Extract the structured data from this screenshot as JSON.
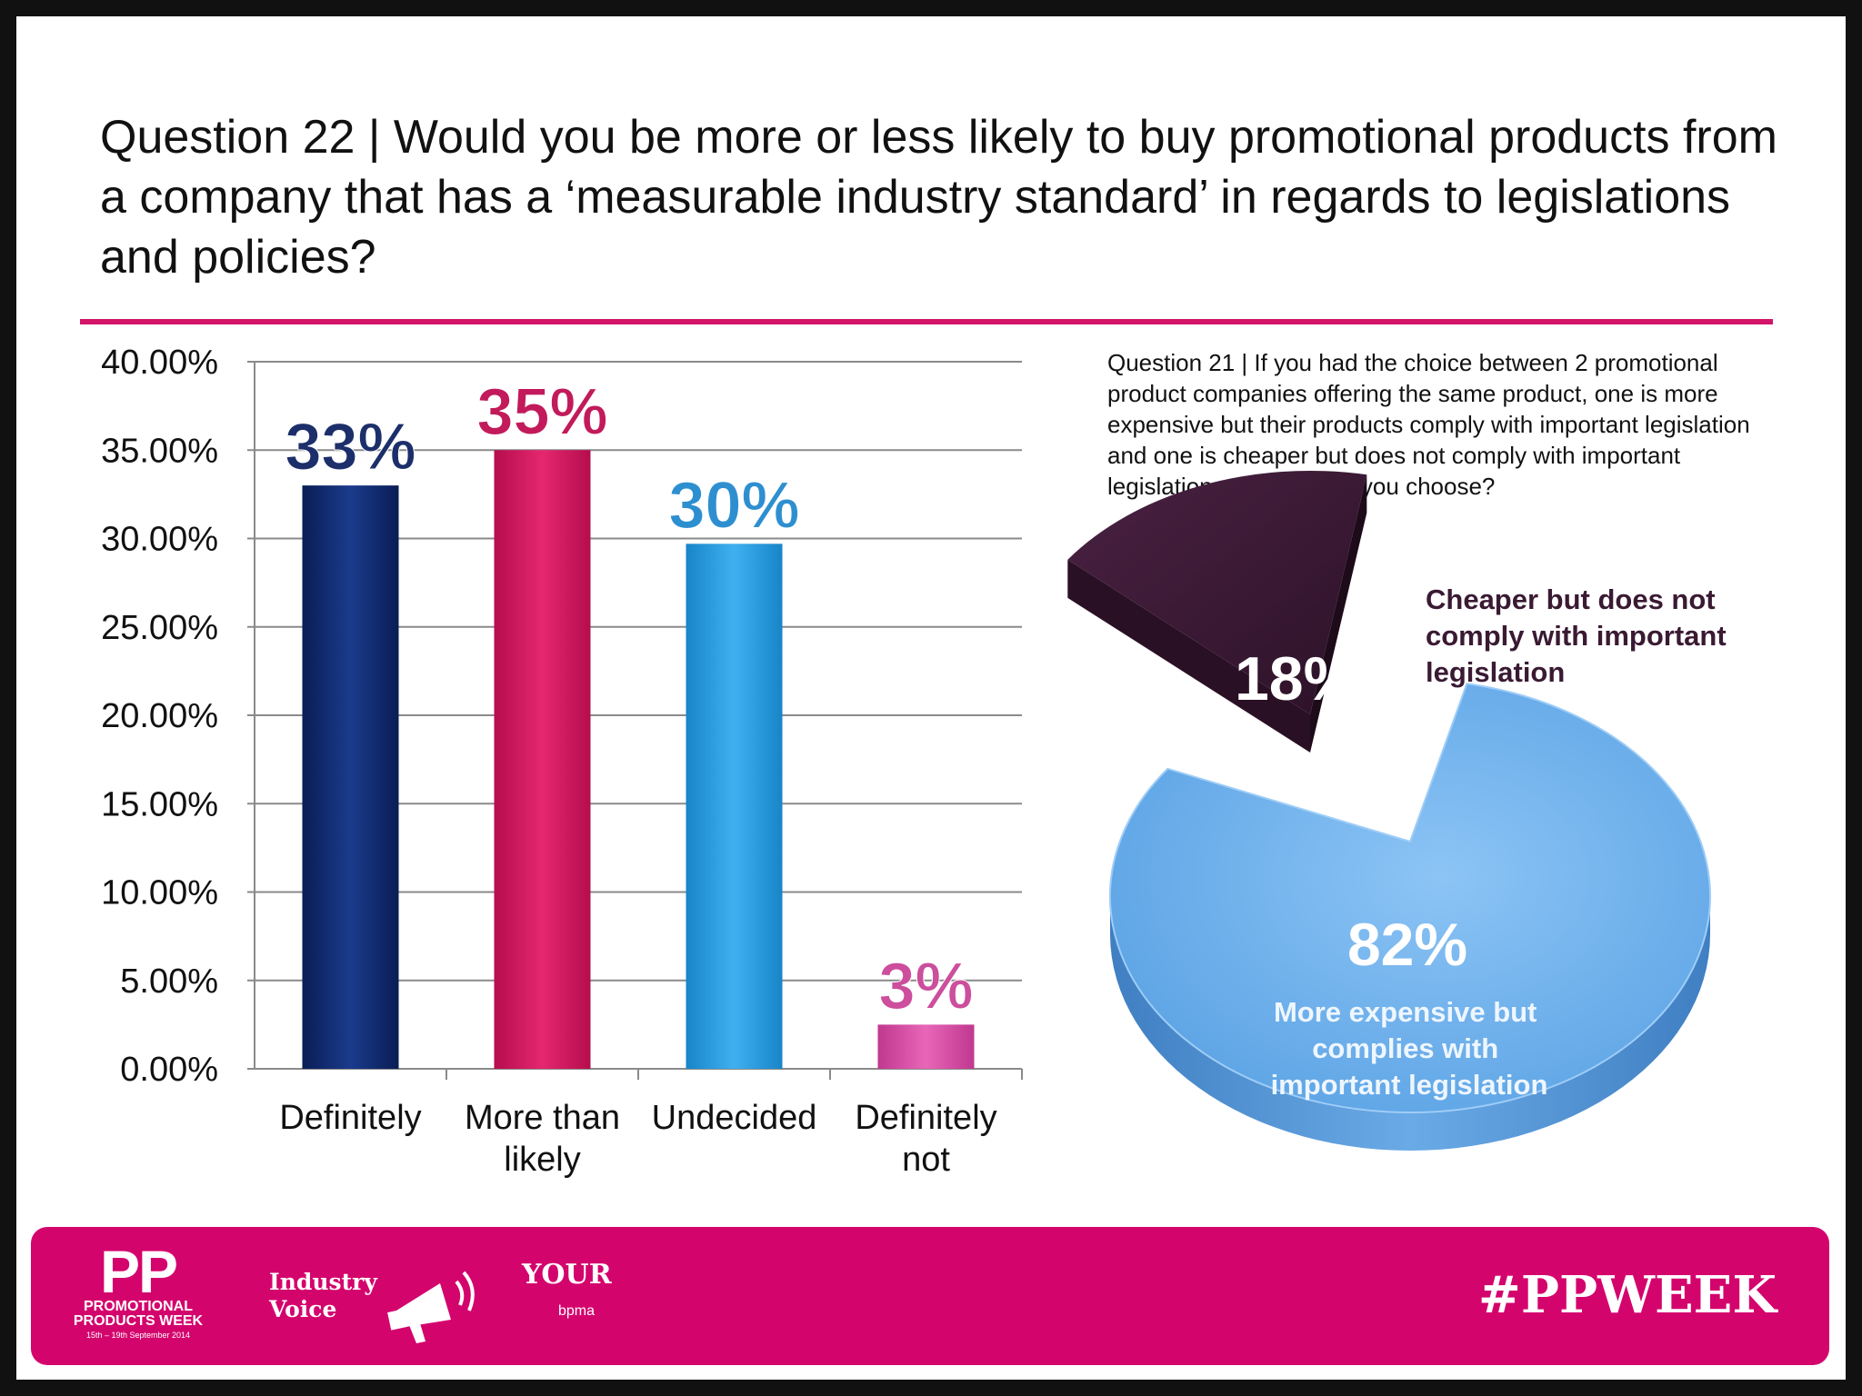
{
  "title": "Question 22 | Would you be more or less likely to buy promotional products from a company that has a ‘measurable industry standard’ in regards to legislations and policies?",
  "colors": {
    "accent": "#d3156a",
    "footer": "#d4046d",
    "definitely": "#0f2a6e",
    "more_than_likely": "#d3155e",
    "undecided": "#1f9be0",
    "definitely_not": "#d84aa6",
    "pie_main": "#6fb1ee",
    "pie_slice": "#3a1a33"
  },
  "chart_data": [
    {
      "type": "bar",
      "title": "",
      "xlabel": "",
      "ylabel": "",
      "ylim": [
        0,
        40
      ],
      "yticks": [
        "0.00%",
        "5.00%",
        "10.00%",
        "15.00%",
        "20.00%",
        "25.00%",
        "30.00%",
        "35.00%",
        "40.00%"
      ],
      "grid": true,
      "legend": "none",
      "categories": [
        [
          "Definitely"
        ],
        [
          "More than",
          "likely"
        ],
        [
          "Undecided"
        ],
        [
          "Definitely",
          "not"
        ]
      ],
      "values": [
        33,
        35,
        29.7,
        2.5
      ],
      "data_labels": [
        "33%",
        "35%",
        "30%",
        "3%"
      ],
      "label_colors": [
        "#1c2f6a",
        "#c21a5b",
        "#2e8fd0",
        "#cc4e9c"
      ]
    },
    {
      "type": "pie",
      "title": "Question 21 | If you had the choice between 2 promotional product companies offering the same product, one is more expensive but their products comply with important legislation and one is cheaper but does not comply with important legislation, which would you choose?",
      "slices": [
        {
          "label": "More expensive but complies with important legislation",
          "value": 82,
          "display": "82%"
        },
        {
          "label": "Cheaper but does not comply with important legislation",
          "value": 18,
          "display": "18%"
        }
      ]
    }
  ],
  "pie_labels": {
    "main_lines": [
      "More expensive but",
      "complies with",
      "important legislation"
    ],
    "slice_lines": [
      "Cheaper but does not",
      "comply with important",
      "legislation"
    ]
  },
  "footer": {
    "pp_mark": "PP",
    "pp_line1": "PROMOTIONAL",
    "pp_line2": "PRODUCTS WEEK",
    "pp_dates": "15th – 19th September 2014",
    "industry": "Industry",
    "voice": "Voice",
    "your": "YOUR",
    "bpma": "bpma",
    "hashtag": "#PPWEEK"
  }
}
